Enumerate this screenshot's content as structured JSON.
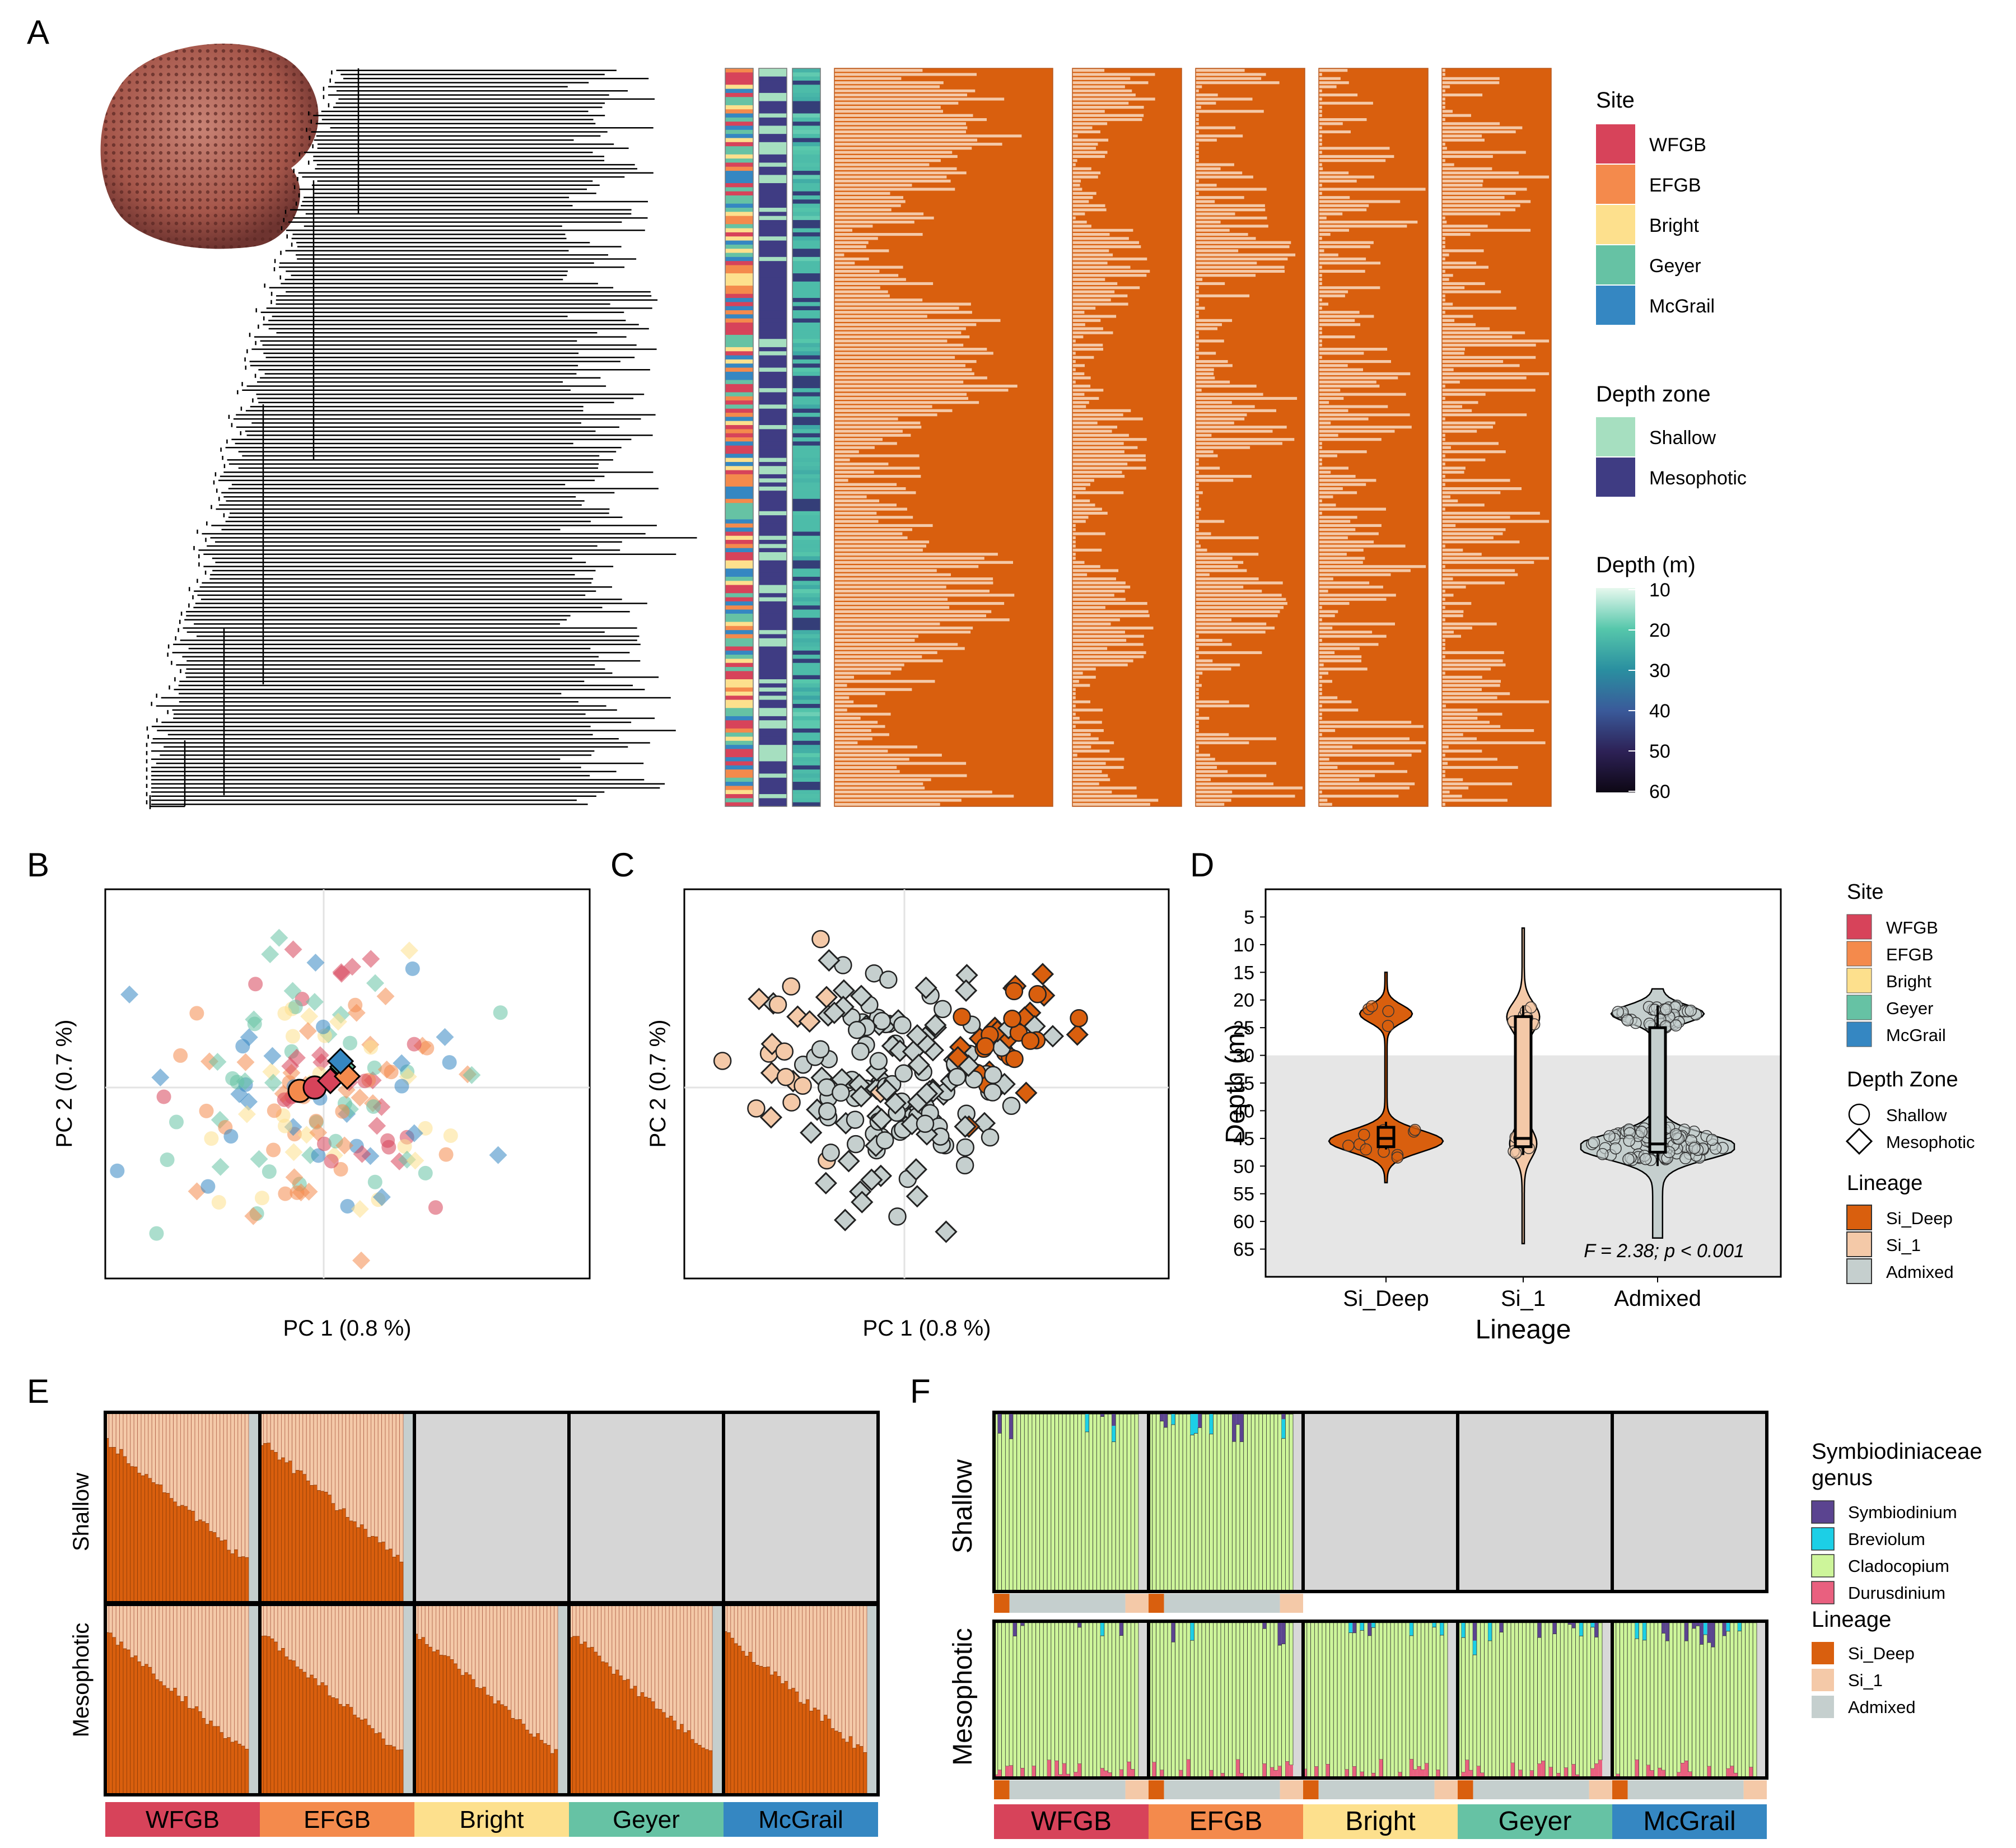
{
  "panel_labels": [
    "A",
    "B",
    "C",
    "D",
    "E",
    "F"
  ],
  "colors": {
    "site": {
      "WFGB": "#d7435a",
      "EFGB": "#f48a4c",
      "Bright": "#fde08d",
      "Geyer": "#66c2a4",
      "McGrail": "#3587c2"
    },
    "depth_zone": {
      "Shallow": "#a6dfc0",
      "Mesophotic": "#3f3c83"
    },
    "lineage": {
      "Si_Deep": "#d95f0e",
      "Si_1": "#f4c9a8",
      "Admixed": "#c5cfce"
    },
    "symbio": {
      "Symbiodinium": "#5b4490",
      "Breviolum": "#1ccfe6",
      "Cladocopium": "#cdf59a",
      "Durusdinium": "#e9607f"
    },
    "empty_facet": "#d6d6d6",
    "depth_shade": "#e6e6e6"
  },
  "panelA": {
    "legend_site_title": "Site",
    "legend_depthzone_title": "Depth zone",
    "legend_depth_title": "Depth (m)",
    "sites": [
      "WFGB",
      "EFGB",
      "Bright",
      "Geyer",
      "McGrail"
    ],
    "zones": [
      "Shallow",
      "Mesophotic"
    ],
    "depth_ticks": [
      "10",
      "20",
      "30",
      "40",
      "50",
      "60"
    ],
    "structure_columns": 5,
    "n_samples": 180
  },
  "panelB": {
    "xlabel": "PC 1 (0.8 %)",
    "ylabel": "PC 2 (0.7 %)",
    "n_points": 170,
    "legend_site_title": "Site",
    "legend_zone_title": "Depth Zone",
    "legend_lineage_title": "Lineage",
    "sites": [
      "WFGB",
      "EFGB",
      "Bright",
      "Geyer",
      "McGrail"
    ],
    "zones": [
      "Shallow",
      "Mesophotic"
    ],
    "lineages": [
      "Si_Deep",
      "Si_1",
      "Admixed"
    ]
  },
  "panelC": {
    "xlabel": "PC 1 (0.8 %)",
    "ylabel": "PC 2 (0.7 %)",
    "n_points": 200
  },
  "chart_data": {
    "type": "violin",
    "categories": [
      "Si_Deep",
      "Si_1",
      "Admixed"
    ],
    "xlabel": "Lineage",
    "ylabel": "Depth (m)",
    "ylim": [
      0,
      70
    ],
    "y_reversed": true,
    "yticks": [
      "5",
      "10",
      "15",
      "20",
      "25",
      "30",
      "35",
      "40",
      "45",
      "50",
      "55",
      "60",
      "65"
    ],
    "shallow_mesophotic_boundary": 30,
    "annotation": "F = 2.38; p < 0.001",
    "boxes": [
      {
        "name": "Si_Deep",
        "q1": 43,
        "median": 45,
        "q3": 46.5,
        "min": 42,
        "max": 47
      },
      {
        "name": "Si_1",
        "q1": 23,
        "median": 45,
        "q3": 46.5,
        "min": 21,
        "max": 48
      },
      {
        "name": "Admixed",
        "q1": 25,
        "median": 46,
        "q3": 47.5,
        "min": 21,
        "max": 50
      }
    ]
  },
  "panelE": {
    "rows": [
      "Shallow",
      "Mesophotic"
    ],
    "sites": [
      "WFGB",
      "EFGB",
      "Bright",
      "Geyer",
      "McGrail"
    ],
    "shallow_present": [
      true,
      true,
      false,
      false,
      false
    ]
  },
  "panelF": {
    "rows": [
      "Shallow",
      "Mesophotic"
    ],
    "sites": [
      "WFGB",
      "EFGB",
      "Bright",
      "Geyer",
      "McGrail"
    ],
    "shallow_present": [
      true,
      true,
      false,
      false,
      false
    ],
    "legend_genus_title_line1": "Symbiodiniaceae",
    "legend_genus_title_line2": "genus",
    "genera": [
      "Symbiodinium",
      "Breviolum",
      "Cladocopium",
      "Durusdinium"
    ],
    "legend_lineage_title": "Lineage",
    "lineages": [
      "Si_Deep",
      "Si_1",
      "Admixed"
    ]
  }
}
